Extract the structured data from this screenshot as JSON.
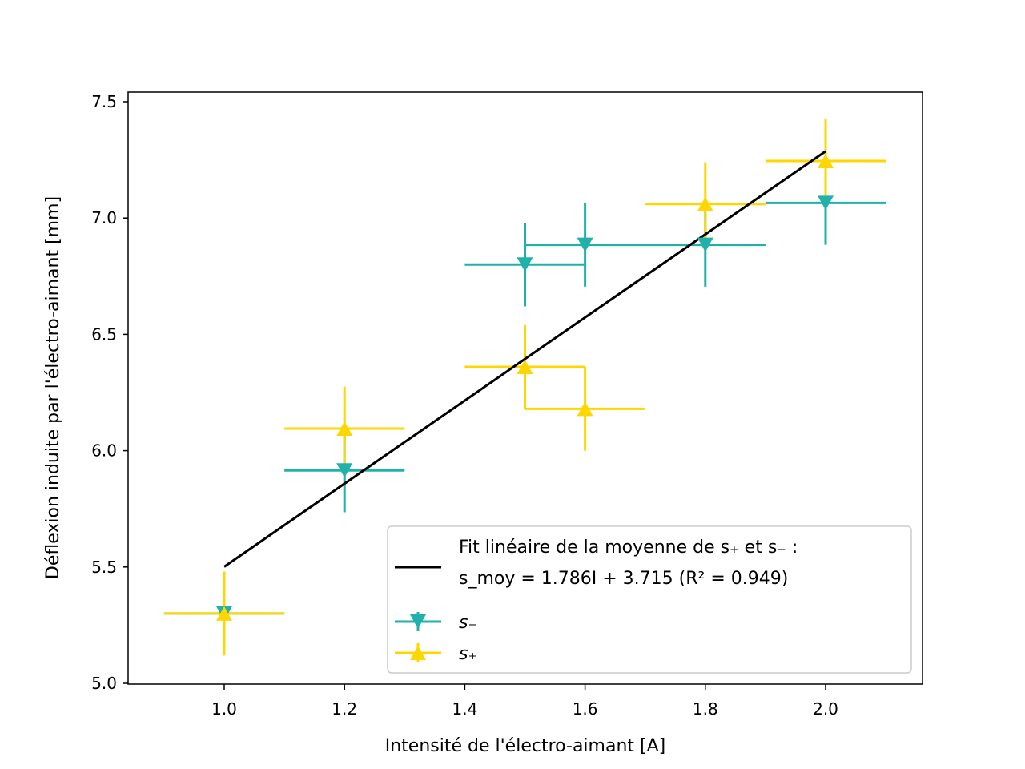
{
  "chart_data": {
    "type": "scatter",
    "xlabel": "Intensité de l'électro-aimant [A]",
    "ylabel": "Déflexion induite par l'électro-aimant [mm]",
    "xlim": [
      0.84,
      2.16
    ],
    "ylim": [
      5.0,
      7.55
    ],
    "xticks": [
      "1.0",
      "1.2",
      "1.4",
      "1.6",
      "1.8",
      "2.0"
    ],
    "yticks": [
      "5.0",
      "5.5",
      "6.0",
      "6.5",
      "7.0",
      "7.5"
    ],
    "grid": false,
    "legend_position": "lower-right",
    "fit": {
      "label_line1": "Fit linéaire de la moyenne de s₊ et s₋ :",
      "label_line2": "s_moy = 1.786I + 3.715 (R² = 0.949)",
      "slope": 1.786,
      "intercept": 3.715,
      "x_range": [
        1.0,
        2.0
      ],
      "color": "#000000"
    },
    "series": [
      {
        "name": "s₋",
        "marker": "triangle-down",
        "color": "#20b2aa",
        "x": [
          1.0,
          1.2,
          1.5,
          1.6,
          1.8,
          2.0
        ],
        "y": [
          5.3,
          5.915,
          6.8,
          6.885,
          6.885,
          7.065
        ],
        "xerr": [
          0.1,
          0.1,
          0.1,
          0.1,
          0.1,
          0.1
        ],
        "yerr": [
          0.18,
          0.18,
          0.18,
          0.18,
          0.18,
          0.18
        ]
      },
      {
        "name": "s₊",
        "marker": "triangle-up",
        "color": "#ffd700",
        "x": [
          1.0,
          1.2,
          1.5,
          1.6,
          1.8,
          2.0
        ],
        "y": [
          5.3,
          6.095,
          6.36,
          6.18,
          7.06,
          7.245
        ],
        "xerr": [
          0.1,
          0.1,
          0.1,
          0.1,
          0.1,
          0.1
        ],
        "yerr": [
          0.18,
          0.18,
          0.18,
          0.18,
          0.18,
          0.18
        ]
      }
    ]
  }
}
